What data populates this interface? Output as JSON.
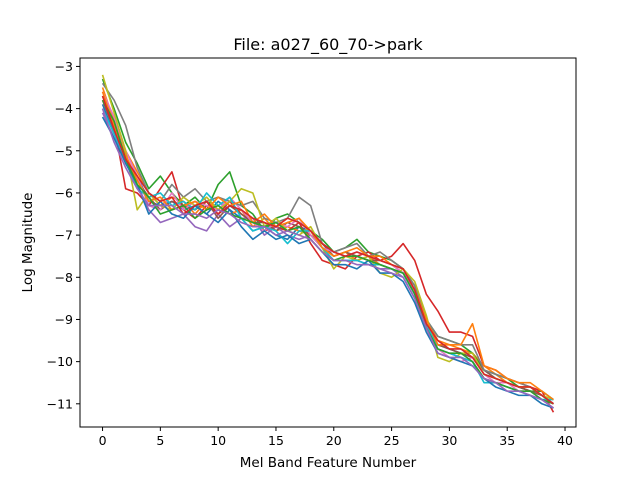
{
  "chart_data": {
    "type": "line",
    "title": "File: a027_60_70->park",
    "xlabel": "Mel Band Feature Number",
    "ylabel": "Log Magnitude",
    "xlim": [
      -1.95,
      40.95
    ],
    "ylim": [
      -11.55,
      -2.8
    ],
    "xticks": [
      0,
      5,
      10,
      15,
      20,
      25,
      30,
      35,
      40
    ],
    "xtick_labels": [
      "0",
      "5",
      "10",
      "15",
      "20",
      "25",
      "30",
      "35",
      "40"
    ],
    "yticks": [
      -3,
      -4,
      -5,
      -6,
      -7,
      -8,
      -9,
      -10,
      -11
    ],
    "ytick_labels": [
      "−3",
      "−4",
      "−5",
      "−6",
      "−7",
      "−8",
      "−9",
      "−10",
      "−11"
    ],
    "grid": false,
    "legend": false,
    "x": [
      0,
      1,
      2,
      3,
      4,
      5,
      6,
      7,
      8,
      9,
      10,
      11,
      12,
      13,
      14,
      15,
      16,
      17,
      18,
      19,
      20,
      21,
      22,
      23,
      24,
      25,
      26,
      27,
      28,
      29,
      30,
      31,
      32,
      33,
      34,
      35,
      36,
      37,
      38,
      39
    ],
    "series_colors": [
      "#1f77b4",
      "#ff7f0e",
      "#2ca02c",
      "#d62728",
      "#9467bd",
      "#8c564b",
      "#e377c2",
      "#7f7f7f",
      "#bcbd22",
      "#17becf"
    ],
    "series": [
      {
        "values": [
          -3.9,
          -4.6,
          -5.2,
          -5.6,
          -6.2,
          -6.3,
          -6.2,
          -6.4,
          -6.3,
          -6.5,
          -6.2,
          -6.4,
          -6.6,
          -6.9,
          -6.8,
          -7.0,
          -7.1,
          -6.8,
          -6.9,
          -7.2,
          -7.4,
          -7.5,
          -7.5,
          -7.6,
          -7.7,
          -7.8,
          -7.9,
          -8.4,
          -9.1,
          -9.6,
          -9.7,
          -9.8,
          -9.9,
          -10.2,
          -10.4,
          -10.5,
          -10.6,
          -10.7,
          -10.8,
          -11.0
        ]
      },
      {
        "values": [
          -3.5,
          -4.3,
          -5.0,
          -5.5,
          -6.0,
          -6.3,
          -6.1,
          -6.2,
          -6.5,
          -6.2,
          -6.4,
          -6.5,
          -6.4,
          -6.8,
          -6.6,
          -6.9,
          -6.8,
          -6.9,
          -7.0,
          -7.3,
          -7.5,
          -7.4,
          -7.6,
          -7.5,
          -7.7,
          -7.8,
          -7.9,
          -8.3,
          -9.0,
          -9.5,
          -9.6,
          -9.7,
          -9.8,
          -10.1,
          -10.3,
          -10.5,
          -10.6,
          -10.6,
          -10.8,
          -11.0
        ]
      },
      {
        "values": [
          -3.3,
          -4.0,
          -4.8,
          -5.3,
          -5.9,
          -5.6,
          -6.0,
          -6.3,
          -6.1,
          -6.4,
          -5.8,
          -5.5,
          -6.3,
          -6.5,
          -6.9,
          -6.6,
          -6.5,
          -6.7,
          -6.9,
          -7.1,
          -7.4,
          -7.3,
          -7.1,
          -7.4,
          -7.5,
          -7.6,
          -7.8,
          -8.2,
          -9.0,
          -9.4,
          -9.5,
          -9.6,
          -9.8,
          -10.2,
          -10.3,
          -10.4,
          -10.6,
          -10.7,
          -10.7,
          -10.9
        ]
      },
      {
        "values": [
          -3.7,
          -4.4,
          -5.9,
          -6.0,
          -6.3,
          -5.9,
          -5.5,
          -6.4,
          -6.6,
          -6.3,
          -6.5,
          -6.2,
          -6.5,
          -6.7,
          -6.9,
          -6.8,
          -6.9,
          -6.7,
          -7.2,
          -7.6,
          -7.7,
          -7.8,
          -7.5,
          -7.4,
          -7.6,
          -7.5,
          -7.2,
          -7.6,
          -8.4,
          -8.8,
          -9.3,
          -9.3,
          -9.4,
          -10.1,
          -10.2,
          -10.4,
          -10.5,
          -10.6,
          -10.7,
          -11.2
        ]
      },
      {
        "values": [
          -4.1,
          -4.7,
          -5.1,
          -5.8,
          -6.4,
          -6.7,
          -6.6,
          -6.5,
          -6.8,
          -6.9,
          -6.5,
          -6.8,
          -6.6,
          -6.6,
          -7.0,
          -6.8,
          -7.0,
          -7.1,
          -7.0,
          -7.3,
          -7.6,
          -7.6,
          -7.6,
          -7.7,
          -7.8,
          -7.8,
          -8.0,
          -8.5,
          -9.2,
          -9.7,
          -9.8,
          -9.9,
          -10.0,
          -10.4,
          -10.5,
          -10.6,
          -10.7,
          -10.7,
          -10.9,
          -11.1
        ]
      },
      {
        "values": [
          -3.8,
          -4.5,
          -5.3,
          -5.7,
          -6.1,
          -6.4,
          -6.2,
          -6.3,
          -6.4,
          -6.2,
          -6.6,
          -6.3,
          -6.5,
          -6.7,
          -6.7,
          -6.9,
          -6.7,
          -6.8,
          -7.0,
          -7.2,
          -7.5,
          -7.4,
          -7.5,
          -7.6,
          -7.6,
          -7.7,
          -7.9,
          -8.3,
          -9.1,
          -9.6,
          -9.7,
          -9.8,
          -9.9,
          -10.2,
          -10.4,
          -10.5,
          -10.6,
          -10.7,
          -10.8,
          -11.0
        ]
      },
      {
        "values": [
          -3.6,
          -4.2,
          -5.0,
          -5.6,
          -6.3,
          -6.4,
          -6.0,
          -6.4,
          -6.2,
          -6.3,
          -6.4,
          -6.1,
          -6.4,
          -6.7,
          -6.9,
          -6.7,
          -6.8,
          -6.6,
          -7.0,
          -7.3,
          -7.4,
          -7.5,
          -7.4,
          -7.5,
          -7.6,
          -7.7,
          -7.9,
          -8.3,
          -9.2,
          -9.7,
          -9.9,
          -10.0,
          -9.9,
          -10.3,
          -10.5,
          -10.5,
          -10.7,
          -10.8,
          -10.9,
          -11.1
        ]
      },
      {
        "values": [
          -3.4,
          -3.8,
          -4.4,
          -5.4,
          -6.0,
          -6.2,
          -5.8,
          -6.1,
          -5.9,
          -6.2,
          -6.1,
          -6.2,
          -6.3,
          -6.2,
          -6.6,
          -6.7,
          -6.6,
          -6.1,
          -6.3,
          -7.2,
          -7.4,
          -7.3,
          -7.2,
          -7.5,
          -7.4,
          -7.6,
          -7.8,
          -8.2,
          -9.0,
          -9.4,
          -9.5,
          -9.6,
          -9.6,
          -10.2,
          -10.3,
          -10.4,
          -10.5,
          -10.6,
          -10.8,
          -11.0
        ]
      },
      {
        "values": [
          -3.2,
          -4.1,
          -5.0,
          -6.4,
          -6.0,
          -6.3,
          -6.4,
          -6.1,
          -6.3,
          -6.1,
          -6.4,
          -6.2,
          -5.9,
          -6.0,
          -6.8,
          -6.6,
          -6.9,
          -7.0,
          -6.8,
          -7.3,
          -7.8,
          -7.5,
          -7.6,
          -7.5,
          -7.9,
          -8.0,
          -7.8,
          -8.1,
          -8.9,
          -9.9,
          -10.0,
          -9.8,
          -9.8,
          -10.3,
          -10.4,
          -10.5,
          -10.6,
          -10.6,
          -10.8,
          -10.9
        ]
      },
      {
        "values": [
          -4.0,
          -4.6,
          -5.2,
          -5.9,
          -6.1,
          -6.0,
          -6.3,
          -6.2,
          -6.4,
          -6.0,
          -6.3,
          -6.1,
          -6.6,
          -6.9,
          -6.8,
          -6.9,
          -7.2,
          -6.9,
          -6.9,
          -7.3,
          -7.6,
          -7.6,
          -7.6,
          -7.7,
          -7.7,
          -7.8,
          -7.9,
          -8.4,
          -9.1,
          -9.7,
          -9.8,
          -9.9,
          -10.0,
          -10.5,
          -10.5,
          -10.6,
          -10.7,
          -10.8,
          -10.9,
          -10.9
        ]
      },
      {
        "values": [
          -4.2,
          -4.7,
          -5.3,
          -5.8,
          -6.5,
          -6.2,
          -6.5,
          -6.6,
          -6.3,
          -6.5,
          -6.7,
          -6.4,
          -6.8,
          -7.1,
          -6.9,
          -7.1,
          -7.0,
          -7.2,
          -7.1,
          -7.4,
          -7.7,
          -7.7,
          -7.8,
          -7.6,
          -7.9,
          -7.9,
          -8.1,
          -8.6,
          -9.3,
          -9.8,
          -9.9,
          -10.0,
          -10.1,
          -10.4,
          -10.6,
          -10.7,
          -10.8,
          -10.8,
          -11.0,
          -11.1
        ]
      },
      {
        "values": [
          -3.6,
          -4.4,
          -5.1,
          -5.7,
          -6.2,
          -6.1,
          -6.4,
          -6.3,
          -6.2,
          -6.4,
          -6.1,
          -6.3,
          -6.2,
          -6.7,
          -6.5,
          -6.8,
          -6.7,
          -6.6,
          -6.9,
          -7.3,
          -7.5,
          -7.4,
          -7.3,
          -7.5,
          -7.5,
          -7.7,
          -7.8,
          -8.3,
          -9.0,
          -9.6,
          -9.6,
          -9.6,
          -9.1,
          -10.1,
          -10.2,
          -10.4,
          -10.5,
          -10.5,
          -10.7,
          -10.9
        ]
      },
      {
        "values": [
          -3.8,
          -4.3,
          -5.2,
          -5.8,
          -6.1,
          -6.5,
          -6.4,
          -6.3,
          -6.6,
          -6.4,
          -6.3,
          -6.5,
          -6.6,
          -6.7,
          -6.8,
          -6.7,
          -6.9,
          -6.8,
          -7.1,
          -7.4,
          -7.6,
          -7.5,
          -7.5,
          -7.6,
          -7.7,
          -7.8,
          -7.9,
          -8.4,
          -9.2,
          -9.7,
          -9.8,
          -9.8,
          -10.0,
          -10.4,
          -10.5,
          -10.6,
          -10.7,
          -10.7,
          -10.9,
          -11.0
        ]
      },
      {
        "values": [
          -3.7,
          -4.5,
          -5.2,
          -5.6,
          -6.0,
          -6.2,
          -6.1,
          -6.5,
          -6.3,
          -6.2,
          -6.5,
          -6.3,
          -6.4,
          -6.6,
          -6.7,
          -6.8,
          -6.6,
          -6.7,
          -6.9,
          -7.2,
          -7.4,
          -7.5,
          -7.4,
          -7.5,
          -7.6,
          -7.7,
          -7.8,
          -8.3,
          -9.1,
          -9.5,
          -9.7,
          -9.7,
          -9.9,
          -10.3,
          -10.4,
          -10.5,
          -10.6,
          -10.6,
          -10.8,
          -11.0
        ]
      },
      {
        "values": [
          -4.0,
          -4.8,
          -5.4,
          -5.9,
          -6.3,
          -6.3,
          -6.3,
          -6.5,
          -6.5,
          -6.6,
          -6.4,
          -6.5,
          -6.7,
          -6.8,
          -6.8,
          -7.0,
          -6.9,
          -7.0,
          -7.1,
          -7.4,
          -7.6,
          -7.6,
          -7.7,
          -7.7,
          -7.8,
          -7.9,
          -8.0,
          -8.5,
          -9.2,
          -9.8,
          -9.9,
          -9.9,
          -10.1,
          -10.4,
          -10.5,
          -10.7,
          -10.7,
          -10.8,
          -10.9,
          -11.1
        ]
      }
    ]
  }
}
